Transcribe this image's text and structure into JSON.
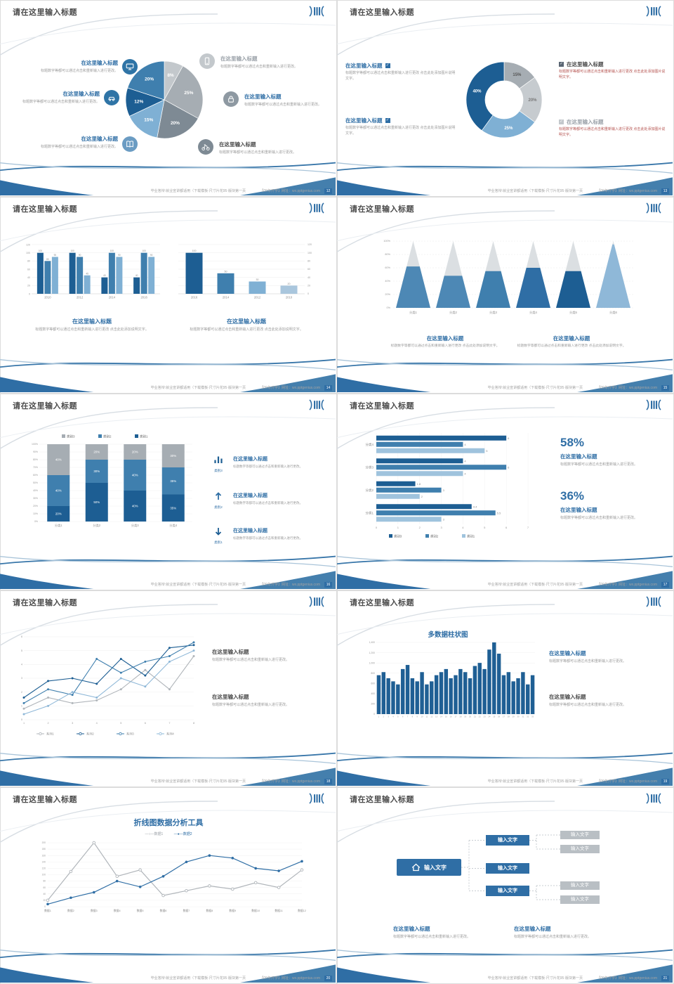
{
  "meta": {
    "background": "#e8e8e8",
    "accent": "#2f6ea5"
  },
  "common": {
    "slide_title": "请在这里输入标题",
    "block_title": "在这里输入标题",
    "body_a": "标题数字等都可以通过点击和重新输入进行更改。",
    "body_b": "标题数字等都可以通过点击和重新输入进行更改 点击此处添加图片说明文字。",
    "body_c": "标题数字等都可以通过点击和重新输入进行更改 点击此处添加说明文字。",
    "footer_left": "毕业答辩:就业宣讲都适用（下载模板·尺寸片花95·版块第一页",
    "footer_right": "【09年开学】网址：wx.pptgenius.com",
    "input_text": "输入文字"
  },
  "slides": [
    {
      "page": "12",
      "chart_data": {
        "type": "pie",
        "slices": [
          {
            "label": "8%",
            "value": 8,
            "color": "#c3c8cc"
          },
          {
            "label": "25%",
            "value": 25,
            "color": "#a6adb3"
          },
          {
            "label": "20%",
            "value": 20,
            "color": "#7e8a94"
          },
          {
            "label": "15%",
            "value": 15,
            "color": "#7fb0d4"
          },
          {
            "label": "12%",
            "value": 12,
            "color": "#1d5e93"
          },
          {
            "label": "20%",
            "value": 20,
            "color": "#3f7fae"
          }
        ]
      }
    },
    {
      "page": "13",
      "chart_data": {
        "type": "pie",
        "subtype": "donut",
        "slices": [
          {
            "label": "15%",
            "value": 15,
            "color": "#a6adb3",
            "label_color": "#555555"
          },
          {
            "label": "20%",
            "value": 20,
            "color": "#c6cbcf",
            "label_color": "#777777"
          },
          {
            "label": "25%",
            "value": 25,
            "color": "#7fb0d4",
            "label_color": "#ffffff"
          },
          {
            "label": "40%",
            "value": 40,
            "color": "#1d5e93",
            "label_color": "#ffffff"
          }
        ]
      }
    },
    {
      "page": "14",
      "chart_data": [
        {
          "type": "bar",
          "categories": [
            "2010",
            "2012",
            "2014",
            "2016"
          ],
          "series": [
            {
              "name": "系列1",
              "color": "#1d5e93",
              "values": [
                100,
                100,
                40,
                40
              ]
            },
            {
              "name": "系列2",
              "color": "#3f7fae",
              "values": [
                80,
                90,
                100,
                100
              ]
            },
            {
              "name": "系列3",
              "color": "#7fb0d4",
              "values": [
                90,
                45,
                90,
                90
              ]
            }
          ],
          "ylim": [
            0,
            120
          ],
          "ticks": [
            0,
            20,
            40,
            60,
            80,
            100,
            120
          ]
        },
        {
          "type": "bar",
          "categories": [
            "2016",
            "2014",
            "2012",
            "2010"
          ],
          "values": [
            100,
            50,
            30,
            20
          ],
          "colors": [
            "#1d5e93",
            "#3f7fae",
            "#7fb0d4",
            "#a9c6dd"
          ],
          "ylim": [
            0,
            120
          ],
          "ticks": [
            0,
            20,
            40,
            60,
            80,
            100,
            120
          ]
        }
      ]
    },
    {
      "page": "15",
      "chart_data": {
        "type": "pyramid",
        "categories": [
          "分类1",
          "分类2",
          "分类3",
          "分类4",
          "分类5",
          "分类6"
        ],
        "fill_percent": [
          62,
          48,
          55,
          60,
          55,
          95
        ],
        "fill_colors": [
          "#4d88b5",
          "#4d88b5",
          "#3f7fae",
          "#2f6ea5",
          "#1d5e93",
          "#8fb8d8"
        ],
        "top_color": "#dbdfe2",
        "yticks": [
          "0%",
          "20%",
          "40%",
          "60%",
          "80%",
          "100%"
        ]
      }
    },
    {
      "page": "16",
      "chart_data": {
        "type": "stacked_column",
        "categories": [
          "分类1",
          "分类2",
          "分类3",
          "分类4"
        ],
        "series": [
          {
            "name": "类别1",
            "color": "#1d5e93",
            "values": [
              20,
              50,
              40,
              35
            ]
          },
          {
            "name": "类别2",
            "color": "#3f7fae",
            "values": [
              40,
              30,
              40,
              35
            ]
          },
          {
            "name": "类别3",
            "color": "#a6adb3",
            "values": [
              40,
              20,
              20,
              30
            ]
          }
        ],
        "legend": [
          "类别3",
          "类别2",
          "类别1"
        ],
        "ylim": [
          0,
          100
        ]
      },
      "callouts": [
        {
          "caption": "类别3"
        },
        {
          "caption": "类别2"
        },
        {
          "caption": "类别1"
        }
      ]
    },
    {
      "page": "17",
      "chart_data": {
        "type": "hbar",
        "categories": [
          "分类1",
          "分类2",
          "分类3",
          "分类4"
        ],
        "series": [
          {
            "name": "类别3",
            "color": "#1d5e93",
            "values": [
              4.4,
              1.8,
              4,
              6
            ]
          },
          {
            "name": "类别2",
            "color": "#3f7fae",
            "values": [
              5.5,
              3,
              6,
              4
            ]
          },
          {
            "name": "类别1",
            "color": "#9fc3dd",
            "values": [
              3,
              2,
              4,
              5
            ]
          }
        ],
        "xlim": [
          0,
          7
        ]
      },
      "stats": [
        "58%",
        "36%"
      ]
    },
    {
      "page": "18",
      "chart_data": {
        "type": "line",
        "x": [
          1,
          2,
          3,
          4,
          5,
          6,
          7,
          8
        ],
        "ylim": [
          0,
          6
        ],
        "series": [
          {
            "name": "系列1",
            "color": "#b0b5ba",
            "values": [
              0.8,
              1.6,
              1.2,
              1.4,
              2.2,
              3.6,
              2.2,
              4.6
            ]
          },
          {
            "name": "系列2",
            "color": "#1d5e93",
            "values": [
              1.6,
              2.8,
              3.0,
              2.6,
              4.4,
              3.2,
              5.2,
              5.4
            ]
          },
          {
            "name": "系列3",
            "color": "#3f7fae",
            "values": [
              1.2,
              2.2,
              1.8,
              4.4,
              3.4,
              4.2,
              4.6,
              5.6
            ]
          },
          {
            "name": "系列4",
            "color": "#8fb8d8",
            "values": [
              0.4,
              1.0,
              2.0,
              1.6,
              3.0,
              2.4,
              4.2,
              5.0
            ]
          }
        ]
      }
    },
    {
      "page": "19",
      "chart_title": "多数据柱状图",
      "chart_data": {
        "type": "bar",
        "color": "#1f5f94",
        "ylim": [
          0,
          1400
        ],
        "yticks": [
          "0",
          "200",
          "400",
          "600",
          "800",
          "1,000",
          "1,200",
          "1,400"
        ],
        "x_labels": [
          "1",
          "2",
          "3",
          "4",
          "5",
          "6",
          "7",
          "8",
          "9",
          "10",
          "11",
          "12",
          "13",
          "14",
          "15",
          "16",
          "17",
          "18",
          "19",
          "20",
          "21",
          "22",
          "23",
          "24",
          "25",
          "26",
          "27",
          "28",
          "29",
          "30",
          "31",
          "32",
          "33"
        ],
        "values": [
          760,
          820,
          700,
          640,
          580,
          880,
          960,
          700,
          640,
          820,
          580,
          640,
          760,
          820,
          880,
          700,
          760,
          880,
          820,
          700,
          940,
          1000,
          880,
          1260,
          1400,
          1180,
          760,
          820,
          640,
          700,
          820,
          580,
          760
        ]
      }
    },
    {
      "page": "20",
      "chart_title": "折线图数据分析工具",
      "chart_data": {
        "type": "line",
        "ylim": [
          0,
          200
        ],
        "yticks": [
          "0",
          "20",
          "40",
          "60",
          "80",
          "100",
          "120",
          "140",
          "160",
          "180",
          "200"
        ],
        "x_labels": [
          "数据1",
          "数据2",
          "数据3",
          "数据4",
          "数据5",
          "数据6",
          "数据7",
          "数据8",
          "数据9",
          "数据10",
          "数据11",
          "数据12"
        ],
        "series": [
          {
            "name": "数据1",
            "color": "#b0b5ba",
            "marker": "open",
            "values": [
              20,
              110,
              200,
              95,
              115,
              35,
              50,
              65,
              55,
              75,
              60,
              115
            ]
          },
          {
            "name": "数据2",
            "color": "#2f6ea5",
            "marker": "filled",
            "values": [
              8,
              28,
              45,
              80,
              62,
              95,
              140,
              160,
              152,
              120,
              112,
              142
            ]
          }
        ]
      }
    },
    {
      "page": "21",
      "diagram": {
        "root": "输入文字",
        "nodes": "输入文字"
      }
    }
  ]
}
